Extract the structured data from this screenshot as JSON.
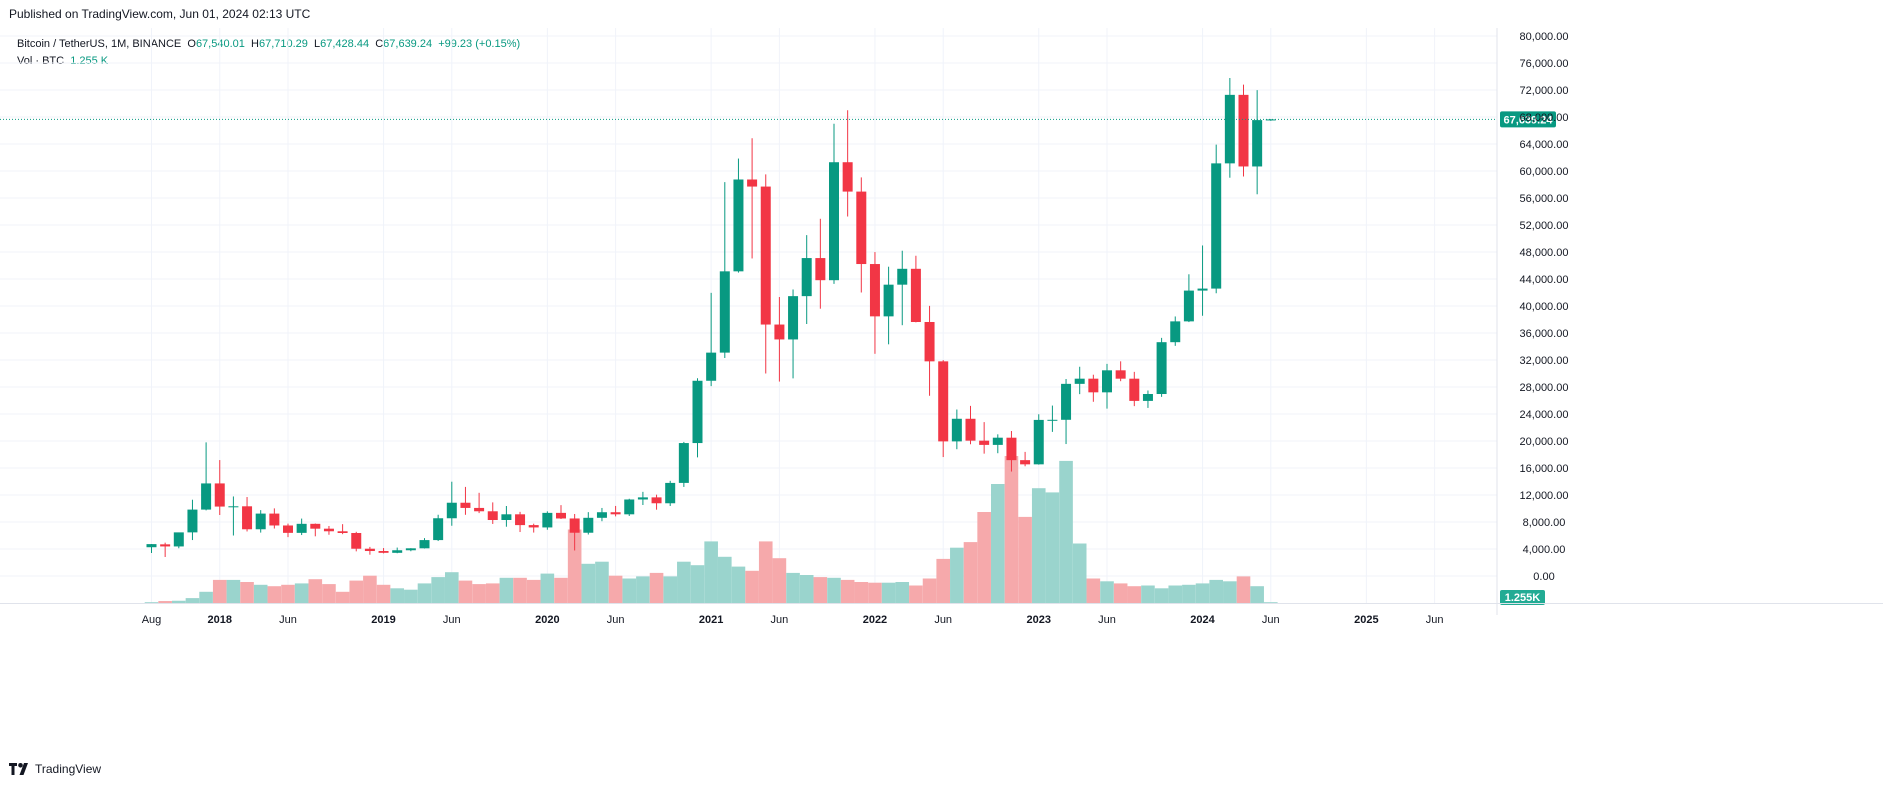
{
  "header": {
    "published": "Published on TradingView.com, Jun 01, 2024 02:13 UTC"
  },
  "legend": {
    "symbol": "Bitcoin / TetherUS, 1M, BINANCE",
    "o_label": "O",
    "o_value": "67,540.01",
    "h_label": "H",
    "h_value": "67,710.29",
    "l_label": "L",
    "l_value": "67,428.44",
    "c_label": "C",
    "c_value": "67,639.24",
    "change": "+99.23 (+0.15%)",
    "vol_label": "Vol · BTC",
    "vol_value": "1.255 K"
  },
  "footer": {
    "brand": "TradingView"
  },
  "colors": {
    "up": "#089981",
    "down": "#f23645",
    "vol_up": "#9ad4cd",
    "vol_down": "#f6a9ab",
    "grid": "#f0f3fa",
    "text": "#131722"
  },
  "chart_data": {
    "type": "candlestick",
    "symbol": "BTCUSDT",
    "interval": "1M",
    "price_axis": {
      "range": [
        -4000,
        82000
      ],
      "ticks": [
        0,
        4000,
        8000,
        12000,
        16000,
        20000,
        24000,
        28000,
        32000,
        36000,
        40000,
        44000,
        48000,
        52000,
        56000,
        60000,
        64000,
        68000,
        72000,
        76000,
        80000
      ],
      "tick_labels": [
        "0.00",
        "4,000.00",
        "8,000.00",
        "12,000.00",
        "16,000.00",
        "20,000.00",
        "24,000.00",
        "28,000.00",
        "32,000.00",
        "36,000.00",
        "40,000.00",
        "44,000.00",
        "48,000.00",
        "52,000.00",
        "56,000.00",
        "60,000.00",
        "64,000.00",
        "68,000.00",
        "72,000.00",
        "76,000.00",
        "80,000.00"
      ],
      "position": "right"
    },
    "time_axis_labels": [
      "Aug",
      "2018",
      "Jun",
      "2019",
      "Jun",
      "2020",
      "Jun",
      "2021",
      "Jun",
      "2022",
      "Jun",
      "2023",
      "Jun",
      "2024",
      "Jun",
      "2025",
      "Jun"
    ],
    "time_axis_label_months": [
      "2017-08",
      "2018-01",
      "2018-06",
      "2019-01",
      "2019-06",
      "2020-01",
      "2020-06",
      "2021-01",
      "2021-06",
      "2022-01",
      "2022-06",
      "2023-01",
      "2023-06",
      "2024-01",
      "2024-06",
      "2025-01",
      "2025-06"
    ],
    "last_price_label": "67,639.24",
    "last_volume_label": "1.255K",
    "volume_max": 2100000,
    "candles": [
      {
        "t": "2017-08",
        "o": 4261,
        "h": 4745,
        "l": 3400,
        "c": 4724,
        "v": 2500
      },
      {
        "t": "2017-09",
        "o": 4690,
        "h": 4939,
        "l": 2817,
        "c": 4379,
        "v": 28000
      },
      {
        "t": "2017-10",
        "o": 4379,
        "h": 6448,
        "l": 4110,
        "c": 6463,
        "v": 32000
      },
      {
        "t": "2017-11",
        "o": 6463,
        "h": 11300,
        "l": 5325,
        "c": 9838,
        "v": 70000
      },
      {
        "t": "2017-12",
        "o": 9838,
        "h": 19798,
        "l": 9722,
        "c": 13716,
        "v": 160000
      },
      {
        "t": "2018-01",
        "o": 13716,
        "h": 17176,
        "l": 9035,
        "c": 10285,
        "v": 330000
      },
      {
        "t": "2018-02",
        "o": 10285,
        "h": 11786,
        "l": 6000,
        "c": 10326,
        "v": 330000
      },
      {
        "t": "2018-03",
        "o": 10326,
        "h": 11700,
        "l": 6600,
        "c": 6923,
        "v": 300000
      },
      {
        "t": "2018-04",
        "o": 6923,
        "h": 9759,
        "l": 6430,
        "c": 9246,
        "v": 260000
      },
      {
        "t": "2018-05",
        "o": 9246,
        "h": 10020,
        "l": 7032,
        "c": 7485,
        "v": 240000
      },
      {
        "t": "2018-06",
        "o": 7485,
        "h": 7760,
        "l": 5755,
        "c": 6391,
        "v": 260000
      },
      {
        "t": "2018-07",
        "o": 6391,
        "h": 8507,
        "l": 6070,
        "c": 7730,
        "v": 280000
      },
      {
        "t": "2018-08",
        "o": 7730,
        "h": 7780,
        "l": 5880,
        "c": 7010,
        "v": 340000
      },
      {
        "t": "2018-09",
        "o": 7010,
        "h": 7410,
        "l": 6110,
        "c": 6626,
        "v": 270000
      },
      {
        "t": "2018-10",
        "o": 6626,
        "h": 7680,
        "l": 6200,
        "c": 6371,
        "v": 160000
      },
      {
        "t": "2018-11",
        "o": 6371,
        "h": 6545,
        "l": 3652,
        "c": 4041,
        "v": 320000
      },
      {
        "t": "2018-12",
        "o": 4041,
        "h": 4312,
        "l": 3156,
        "c": 3702,
        "v": 390000
      },
      {
        "t": "2019-01",
        "o": 3702,
        "h": 4140,
        "l": 3349,
        "c": 3434,
        "v": 260000
      },
      {
        "t": "2019-02",
        "o": 3434,
        "h": 4210,
        "l": 3373,
        "c": 3814,
        "v": 210000
      },
      {
        "t": "2019-03",
        "o": 3814,
        "h": 4120,
        "l": 3670,
        "c": 4103,
        "v": 190000
      },
      {
        "t": "2019-04",
        "o": 4103,
        "h": 5620,
        "l": 4080,
        "c": 5321,
        "v": 280000
      },
      {
        "t": "2019-05",
        "o": 5321,
        "h": 9074,
        "l": 5180,
        "c": 8555,
        "v": 370000
      },
      {
        "t": "2019-06",
        "o": 8555,
        "h": 13970,
        "l": 7444,
        "c": 10855,
        "v": 440000
      },
      {
        "t": "2019-07",
        "o": 10855,
        "h": 13200,
        "l": 9066,
        "c": 10085,
        "v": 320000
      },
      {
        "t": "2019-08",
        "o": 10085,
        "h": 12325,
        "l": 9320,
        "c": 9588,
        "v": 270000
      },
      {
        "t": "2019-09",
        "o": 9588,
        "h": 10905,
        "l": 7710,
        "c": 8294,
        "v": 280000
      },
      {
        "t": "2019-10",
        "o": 8294,
        "h": 10370,
        "l": 7300,
        "c": 9140,
        "v": 360000
      },
      {
        "t": "2019-11",
        "o": 9140,
        "h": 9505,
        "l": 6515,
        "c": 7541,
        "v": 360000
      },
      {
        "t": "2019-12",
        "o": 7541,
        "h": 7750,
        "l": 6435,
        "c": 7195,
        "v": 330000
      },
      {
        "t": "2020-01",
        "o": 7195,
        "h": 9578,
        "l": 6854,
        "c": 9352,
        "v": 420000
      },
      {
        "t": "2020-02",
        "o": 9352,
        "h": 10500,
        "l": 8450,
        "c": 8523,
        "v": 360000
      },
      {
        "t": "2020-03",
        "o": 8523,
        "h": 9188,
        "l": 3782,
        "c": 6410,
        "v": 1050000
      },
      {
        "t": "2020-04",
        "o": 6410,
        "h": 9460,
        "l": 6150,
        "c": 8620,
        "v": 560000
      },
      {
        "t": "2020-05",
        "o": 8620,
        "h": 10080,
        "l": 8117,
        "c": 9448,
        "v": 590000
      },
      {
        "t": "2020-06",
        "o": 9448,
        "h": 10380,
        "l": 8833,
        "c": 9138,
        "v": 390000
      },
      {
        "t": "2020-07",
        "o": 9138,
        "h": 11444,
        "l": 8893,
        "c": 11335,
        "v": 350000
      },
      {
        "t": "2020-08",
        "o": 11335,
        "h": 12468,
        "l": 10518,
        "c": 11649,
        "v": 380000
      },
      {
        "t": "2020-09",
        "o": 11649,
        "h": 12050,
        "l": 9825,
        "c": 10776,
        "v": 430000
      },
      {
        "t": "2020-10",
        "o": 10776,
        "h": 14100,
        "l": 10374,
        "c": 13791,
        "v": 380000
      },
      {
        "t": "2020-11",
        "o": 13791,
        "h": 19863,
        "l": 13195,
        "c": 19695,
        "v": 590000
      },
      {
        "t": "2020-12",
        "o": 19695,
        "h": 29300,
        "l": 17572,
        "c": 28923,
        "v": 540000
      },
      {
        "t": "2021-01",
        "o": 28923,
        "h": 41950,
        "l": 28130,
        "c": 33092,
        "v": 880000
      },
      {
        "t": "2021-02",
        "o": 33092,
        "h": 58352,
        "l": 32296,
        "c": 45135,
        "v": 660000
      },
      {
        "t": "2021-03",
        "o": 45135,
        "h": 61844,
        "l": 44950,
        "c": 58741,
        "v": 520000
      },
      {
        "t": "2021-04",
        "o": 58741,
        "h": 64854,
        "l": 47044,
        "c": 57694,
        "v": 460000
      },
      {
        "t": "2021-05",
        "o": 57694,
        "h": 59500,
        "l": 30000,
        "c": 37253,
        "v": 880000
      },
      {
        "t": "2021-06",
        "o": 37253,
        "h": 41330,
        "l": 28805,
        "c": 35045,
        "v": 640000
      },
      {
        "t": "2021-07",
        "o": 35045,
        "h": 42448,
        "l": 29278,
        "c": 41461,
        "v": 430000
      },
      {
        "t": "2021-08",
        "o": 41461,
        "h": 50500,
        "l": 37332,
        "c": 47101,
        "v": 400000
      },
      {
        "t": "2021-09",
        "o": 47101,
        "h": 52920,
        "l": 39600,
        "c": 43824,
        "v": 370000
      },
      {
        "t": "2021-10",
        "o": 43824,
        "h": 67000,
        "l": 43283,
        "c": 61300,
        "v": 360000
      },
      {
        "t": "2021-11",
        "o": 61300,
        "h": 69000,
        "l": 53256,
        "c": 56950,
        "v": 330000
      },
      {
        "t": "2021-12",
        "o": 56950,
        "h": 59053,
        "l": 42000,
        "c": 46217,
        "v": 300000
      },
      {
        "t": "2022-01",
        "o": 46217,
        "h": 47990,
        "l": 32917,
        "c": 38466,
        "v": 290000
      },
      {
        "t": "2022-02",
        "o": 38466,
        "h": 45821,
        "l": 34322,
        "c": 43160,
        "v": 290000
      },
      {
        "t": "2022-03",
        "o": 43160,
        "h": 48190,
        "l": 37155,
        "c": 45510,
        "v": 300000
      },
      {
        "t": "2022-04",
        "o": 45510,
        "h": 47444,
        "l": 37578,
        "c": 37630,
        "v": 250000
      },
      {
        "t": "2022-05",
        "o": 37630,
        "h": 40023,
        "l": 26700,
        "c": 31801,
        "v": 350000
      },
      {
        "t": "2022-06",
        "o": 31801,
        "h": 31982,
        "l": 17622,
        "c": 19942,
        "v": 630000
      },
      {
        "t": "2022-07",
        "o": 19942,
        "h": 24668,
        "l": 18782,
        "c": 23293,
        "v": 790000
      },
      {
        "t": "2022-08",
        "o": 23293,
        "h": 25211,
        "l": 19520,
        "c": 20050,
        "v": 870000
      },
      {
        "t": "2022-09",
        "o": 20050,
        "h": 22800,
        "l": 18125,
        "c": 19423,
        "v": 1300000
      },
      {
        "t": "2022-10",
        "o": 19423,
        "h": 20988,
        "l": 18190,
        "c": 20490,
        "v": 1700000
      },
      {
        "t": "2022-11",
        "o": 20490,
        "h": 21480,
        "l": 15476,
        "c": 17164,
        "v": 2100000
      },
      {
        "t": "2022-12",
        "o": 17164,
        "h": 18387,
        "l": 16256,
        "c": 16542,
        "v": 1230000
      },
      {
        "t": "2023-01",
        "o": 16542,
        "h": 23960,
        "l": 16500,
        "c": 23125,
        "v": 1640000
      },
      {
        "t": "2023-02",
        "o": 23125,
        "h": 25250,
        "l": 21351,
        "c": 23141,
        "v": 1580000
      },
      {
        "t": "2023-03",
        "o": 23141,
        "h": 29184,
        "l": 19549,
        "c": 28465,
        "v": 2030000
      },
      {
        "t": "2023-04",
        "o": 28465,
        "h": 30999,
        "l": 26942,
        "c": 29233,
        "v": 850000
      },
      {
        "t": "2023-05",
        "o": 29233,
        "h": 29820,
        "l": 25811,
        "c": 27210,
        "v": 350000
      },
      {
        "t": "2023-06",
        "o": 27210,
        "h": 31431,
        "l": 24800,
        "c": 30472,
        "v": 310000
      },
      {
        "t": "2023-07",
        "o": 30472,
        "h": 31804,
        "l": 28861,
        "c": 29232,
        "v": 280000
      },
      {
        "t": "2023-08",
        "o": 29232,
        "h": 30244,
        "l": 25166,
        "c": 25940,
        "v": 240000
      },
      {
        "t": "2023-09",
        "o": 25940,
        "h": 27483,
        "l": 24901,
        "c": 26962,
        "v": 250000
      },
      {
        "t": "2023-10",
        "o": 26962,
        "h": 35280,
        "l": 26538,
        "c": 34640,
        "v": 210000
      },
      {
        "t": "2023-11",
        "o": 34640,
        "h": 38450,
        "l": 34097,
        "c": 37723,
        "v": 250000
      },
      {
        "t": "2023-12",
        "o": 37723,
        "h": 44700,
        "l": 37617,
        "c": 42283,
        "v": 260000
      },
      {
        "t": "2024-01",
        "o": 42283,
        "h": 48969,
        "l": 38555,
        "c": 42580,
        "v": 280000
      },
      {
        "t": "2024-02",
        "o": 42580,
        "h": 63913,
        "l": 41884,
        "c": 61131,
        "v": 330000
      },
      {
        "t": "2024-03",
        "o": 61131,
        "h": 73777,
        "l": 59005,
        "c": 71280,
        "v": 310000
      },
      {
        "t": "2024-04",
        "o": 71280,
        "h": 72797,
        "l": 59191,
        "c": 60672,
        "v": 380000
      },
      {
        "t": "2024-05",
        "o": 60672,
        "h": 71979,
        "l": 56552,
        "c": 67540,
        "v": 240000
      },
      {
        "t": "2024-06",
        "o": 67540,
        "h": 67710,
        "l": 67428,
        "c": 67639,
        "v": 1255
      }
    ]
  }
}
